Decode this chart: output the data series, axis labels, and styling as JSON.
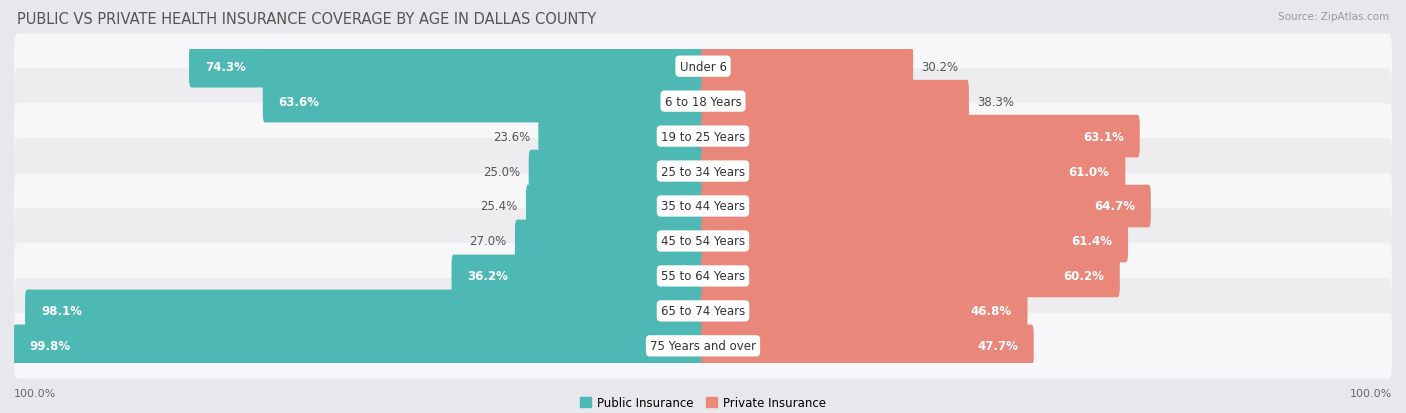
{
  "title": "PUBLIC VS PRIVATE HEALTH INSURANCE COVERAGE BY AGE IN DALLAS COUNTY",
  "source": "Source: ZipAtlas.com",
  "categories": [
    "Under 6",
    "6 to 18 Years",
    "19 to 25 Years",
    "25 to 34 Years",
    "35 to 44 Years",
    "45 to 54 Years",
    "55 to 64 Years",
    "65 to 74 Years",
    "75 Years and over"
  ],
  "public_values": [
    74.3,
    63.6,
    23.6,
    25.0,
    25.4,
    27.0,
    36.2,
    98.1,
    99.8
  ],
  "private_values": [
    30.2,
    38.3,
    63.1,
    61.0,
    64.7,
    61.4,
    60.2,
    46.8,
    47.7
  ],
  "public_color": "#4db8b4",
  "private_color": "#e8877a",
  "bg_color": "#e8e8ec",
  "row_bg_even": "#f7f7f9",
  "row_bg_odd": "#ededf0",
  "bar_height": 0.62,
  "max_value": 100.0,
  "legend_public": "Public Insurance",
  "legend_private": "Private Insurance",
  "title_fontsize": 10.5,
  "source_fontsize": 7.5,
  "value_fontsize": 8.5,
  "category_fontsize": 8.5
}
